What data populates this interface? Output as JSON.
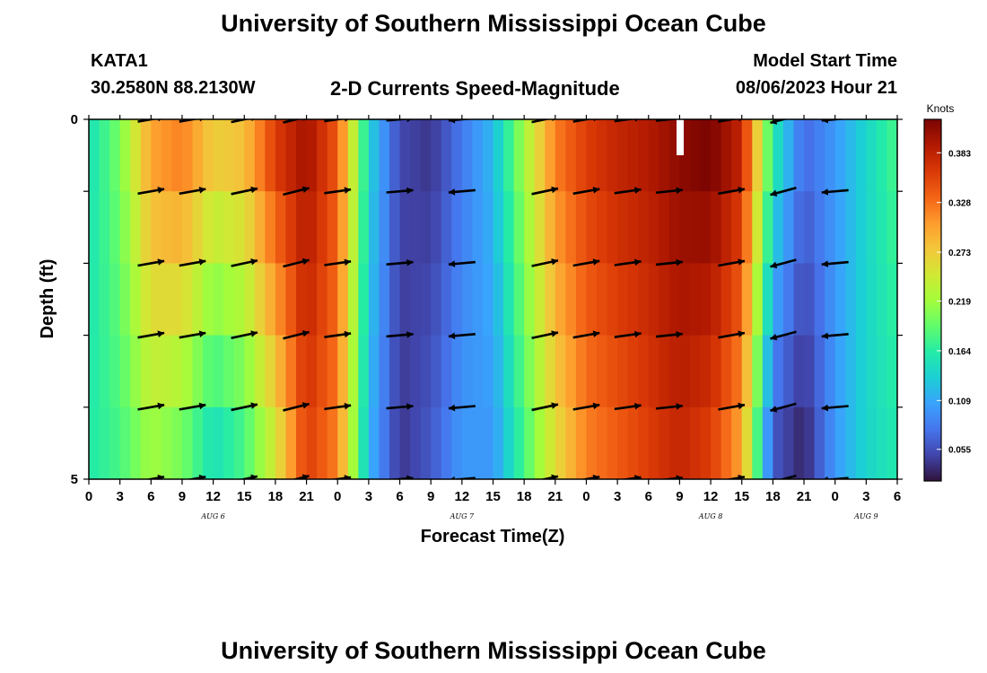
{
  "header": {
    "title": "University of Southern Mississippi Ocean Cube",
    "station": "KATA1",
    "coords": "30.2580N  88.2130W",
    "subtitle": "2-D Currents Speed-Magnitude",
    "model_label": "Model Start Time",
    "model_time": "08/06/2023 Hour 21"
  },
  "footer": {
    "title": "University of Southern Mississippi Ocean Cube"
  },
  "colors": {
    "colormap": [
      "#30123b",
      "#4145ab",
      "#4675ed",
      "#39a2fc",
      "#1bcfd4",
      "#24eca6",
      "#61fc6c",
      "#a4fc3b",
      "#d1e834",
      "#f3c63a",
      "#fe9b2d",
      "#f36315",
      "#d93806",
      "#b11901",
      "#7a0402"
    ],
    "arrow": "#000000",
    "axis": "#000000"
  },
  "chart_data": {
    "type": "heatmap",
    "title": "2-D Currents Speed-Magnitude",
    "xlabel": "Forecast Time(Z)",
    "ylabel": "Depth (ft)",
    "colorbar_label": "Knots",
    "colorbar_ticks": [
      "0.055",
      "0.109",
      "0.164",
      "0.219",
      "0.273",
      "0.328",
      "0.383"
    ],
    "colorbar_tick_values": [
      0.055,
      0.109,
      0.164,
      0.219,
      0.273,
      0.328,
      0.383
    ],
    "vmin": 0.02,
    "vmax": 0.42,
    "ylim": [
      0,
      5
    ],
    "y_tick_labels": [
      "0",
      "5"
    ],
    "y_tick_values": [
      0,
      1,
      2,
      3,
      4,
      5
    ],
    "xlim": [
      0,
      78
    ],
    "x_tick_values": [
      0,
      3,
      6,
      9,
      12,
      15,
      18,
      21,
      24,
      27,
      30,
      33,
      36,
      39,
      42,
      45,
      48,
      51,
      54,
      57,
      60,
      63,
      66,
      69,
      72,
      75,
      78
    ],
    "x_tick_labels": [
      "0",
      "3",
      "6",
      "9",
      "12",
      "15",
      "18",
      "21",
      "0",
      "3",
      "6",
      "9",
      "12",
      "15",
      "18",
      "21",
      "0",
      "3",
      "6",
      "9",
      "12",
      "15",
      "18",
      "21",
      "0",
      "3",
      "6"
    ],
    "day_labels": [
      {
        "label": "AUG 6",
        "hour": 12
      },
      {
        "label": "AUG 7",
        "hour": 36
      },
      {
        "label": "AUG 8",
        "hour": 60
      },
      {
        "label": "AUG 9",
        "hour": 75
      }
    ],
    "column_hours": [
      0,
      3,
      6,
      9,
      12,
      15,
      18,
      21,
      24,
      27,
      30,
      33,
      36,
      39,
      42,
      45,
      48,
      51,
      54,
      57,
      60,
      63,
      66,
      69,
      72,
      75,
      78
    ],
    "speed_profile_surface": [
      0.15,
      0.2,
      0.3,
      0.32,
      0.27,
      0.28,
      0.36,
      0.4,
      0.34,
      0.14,
      0.05,
      0.04,
      0.08,
      0.12,
      0.22,
      0.32,
      0.36,
      0.38,
      0.39,
      0.41,
      0.42,
      0.38,
      0.16,
      0.07,
      0.1,
      0.14,
      0.18
    ],
    "speed_profile_bottom": [
      0.16,
      0.18,
      0.22,
      0.2,
      0.15,
      0.18,
      0.25,
      0.36,
      0.32,
      0.12,
      0.04,
      0.06,
      0.1,
      0.1,
      0.18,
      0.26,
      0.32,
      0.34,
      0.36,
      0.38,
      0.36,
      0.3,
      0.06,
      0.03,
      0.1,
      0.14,
      0.16
    ],
    "vector_hours": [
      6,
      10,
      15,
      20,
      24,
      30,
      36,
      44,
      48,
      52,
      56,
      62,
      67,
      72
    ],
    "vector_depths": [
      0,
      1,
      2,
      3,
      4,
      5
    ],
    "vector_directions_deg": [
      10,
      10,
      12,
      14,
      8,
      5,
      185,
      12,
      10,
      8,
      6,
      10,
      195,
      185
    ]
  }
}
